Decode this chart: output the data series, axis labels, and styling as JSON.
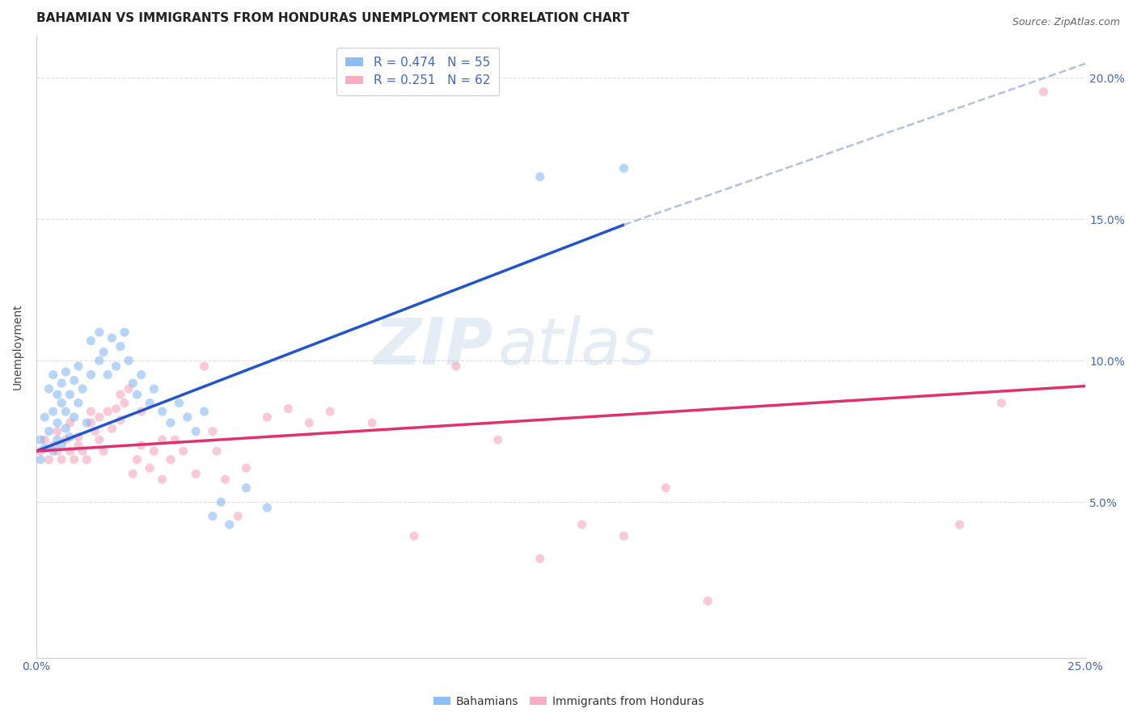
{
  "title": "BAHAMIAN VS IMMIGRANTS FROM HONDURAS UNEMPLOYMENT CORRELATION CHART",
  "source": "Source: ZipAtlas.com",
  "ylabel": "Unemployment",
  "x_min": 0.0,
  "x_max": 0.25,
  "y_min": -0.005,
  "y_max": 0.215,
  "y_ticks": [
    0.05,
    0.1,
    0.15,
    0.2
  ],
  "y_tick_labels": [
    "5.0%",
    "10.0%",
    "15.0%",
    "20.0%"
  ],
  "x_ticks": [
    0.0,
    0.05,
    0.1,
    0.15,
    0.2,
    0.25
  ],
  "x_tick_labels": [
    "0.0%",
    "",
    "",
    "",
    "",
    "25.0%"
  ],
  "legend_entries": [
    {
      "label": "R = 0.474   N = 55",
      "color": "#6699ff"
    },
    {
      "label": "R = 0.251   N = 62",
      "color": "#ff6699"
    }
  ],
  "bahamians_scatter": [
    [
      0.001,
      0.072
    ],
    [
      0.001,
      0.065
    ],
    [
      0.002,
      0.069
    ],
    [
      0.002,
      0.08
    ],
    [
      0.003,
      0.075
    ],
    [
      0.003,
      0.09
    ],
    [
      0.004,
      0.068
    ],
    [
      0.004,
      0.082
    ],
    [
      0.004,
      0.095
    ],
    [
      0.005,
      0.072
    ],
    [
      0.005,
      0.078
    ],
    [
      0.005,
      0.088
    ],
    [
      0.006,
      0.07
    ],
    [
      0.006,
      0.085
    ],
    [
      0.006,
      0.092
    ],
    [
      0.007,
      0.076
    ],
    [
      0.007,
      0.082
    ],
    [
      0.007,
      0.096
    ],
    [
      0.008,
      0.073
    ],
    [
      0.008,
      0.088
    ],
    [
      0.009,
      0.08
    ],
    [
      0.009,
      0.093
    ],
    [
      0.01,
      0.085
    ],
    [
      0.01,
      0.098
    ],
    [
      0.011,
      0.09
    ],
    [
      0.012,
      0.078
    ],
    [
      0.013,
      0.095
    ],
    [
      0.013,
      0.107
    ],
    [
      0.015,
      0.1
    ],
    [
      0.015,
      0.11
    ],
    [
      0.016,
      0.103
    ],
    [
      0.017,
      0.095
    ],
    [
      0.018,
      0.108
    ],
    [
      0.019,
      0.098
    ],
    [
      0.02,
      0.105
    ],
    [
      0.021,
      0.11
    ],
    [
      0.022,
      0.1
    ],
    [
      0.023,
      0.092
    ],
    [
      0.024,
      0.088
    ],
    [
      0.025,
      0.095
    ],
    [
      0.027,
      0.085
    ],
    [
      0.028,
      0.09
    ],
    [
      0.03,
      0.082
    ],
    [
      0.032,
      0.078
    ],
    [
      0.034,
      0.085
    ],
    [
      0.036,
      0.08
    ],
    [
      0.038,
      0.075
    ],
    [
      0.04,
      0.082
    ],
    [
      0.042,
      0.045
    ],
    [
      0.044,
      0.05
    ],
    [
      0.046,
      0.042
    ],
    [
      0.05,
      0.055
    ],
    [
      0.055,
      0.048
    ],
    [
      0.12,
      0.165
    ],
    [
      0.14,
      0.168
    ]
  ],
  "honduras_scatter": [
    [
      0.001,
      0.068
    ],
    [
      0.002,
      0.072
    ],
    [
      0.003,
      0.065
    ],
    [
      0.004,
      0.07
    ],
    [
      0.005,
      0.068
    ],
    [
      0.005,
      0.075
    ],
    [
      0.006,
      0.065
    ],
    [
      0.007,
      0.072
    ],
    [
      0.008,
      0.068
    ],
    [
      0.008,
      0.078
    ],
    [
      0.009,
      0.065
    ],
    [
      0.01,
      0.073
    ],
    [
      0.01,
      0.07
    ],
    [
      0.011,
      0.068
    ],
    [
      0.012,
      0.065
    ],
    [
      0.013,
      0.078
    ],
    [
      0.013,
      0.082
    ],
    [
      0.014,
      0.075
    ],
    [
      0.015,
      0.072
    ],
    [
      0.015,
      0.08
    ],
    [
      0.016,
      0.068
    ],
    [
      0.017,
      0.082
    ],
    [
      0.018,
      0.076
    ],
    [
      0.019,
      0.083
    ],
    [
      0.02,
      0.088
    ],
    [
      0.02,
      0.079
    ],
    [
      0.021,
      0.085
    ],
    [
      0.022,
      0.09
    ],
    [
      0.023,
      0.06
    ],
    [
      0.024,
      0.065
    ],
    [
      0.025,
      0.07
    ],
    [
      0.025,
      0.082
    ],
    [
      0.027,
      0.062
    ],
    [
      0.028,
      0.068
    ],
    [
      0.03,
      0.072
    ],
    [
      0.03,
      0.058
    ],
    [
      0.032,
      0.065
    ],
    [
      0.033,
      0.072
    ],
    [
      0.035,
      0.068
    ],
    [
      0.038,
      0.06
    ],
    [
      0.04,
      0.098
    ],
    [
      0.042,
      0.075
    ],
    [
      0.043,
      0.068
    ],
    [
      0.045,
      0.058
    ],
    [
      0.048,
      0.045
    ],
    [
      0.05,
      0.062
    ],
    [
      0.055,
      0.08
    ],
    [
      0.06,
      0.083
    ],
    [
      0.065,
      0.078
    ],
    [
      0.07,
      0.082
    ],
    [
      0.08,
      0.078
    ],
    [
      0.09,
      0.038
    ],
    [
      0.1,
      0.098
    ],
    [
      0.11,
      0.072
    ],
    [
      0.12,
      0.03
    ],
    [
      0.13,
      0.042
    ],
    [
      0.14,
      0.038
    ],
    [
      0.15,
      0.055
    ],
    [
      0.16,
      0.015
    ],
    [
      0.22,
      0.042
    ],
    [
      0.23,
      0.085
    ],
    [
      0.24,
      0.195
    ]
  ],
  "bahamian_trendline_solid": {
    "x_start": 0.0,
    "y_start": 0.068,
    "x_end": 0.14,
    "y_end": 0.148
  },
  "bahamian_trendline_dashed": {
    "x_start": 0.14,
    "y_start": 0.148,
    "x_end": 0.25,
    "y_end": 0.205
  },
  "honduras_trendline": {
    "x_start": 0.0,
    "y_start": 0.068,
    "x_end": 0.25,
    "y_end": 0.091
  },
  "scatter_alpha": 0.55,
  "scatter_size": 65,
  "bahamian_color": "#7ab3f5",
  "honduras_color": "#f5a0b5",
  "trendline_blue": "#2255cc",
  "trendline_pink": "#e03070",
  "dashed_color": "#aabbdd",
  "watermark_zip_color": "#c5d5ea",
  "watermark_atlas_color": "#c5d5ea",
  "watermark_alpha": 0.45,
  "grid_color": "#dddddd",
  "grid_style": "--",
  "tick_color": "#4466bb",
  "title_fontsize": 11,
  "axis_label_fontsize": 10,
  "tick_fontsize": 10,
  "legend_fontsize": 11,
  "source_fontsize": 9
}
